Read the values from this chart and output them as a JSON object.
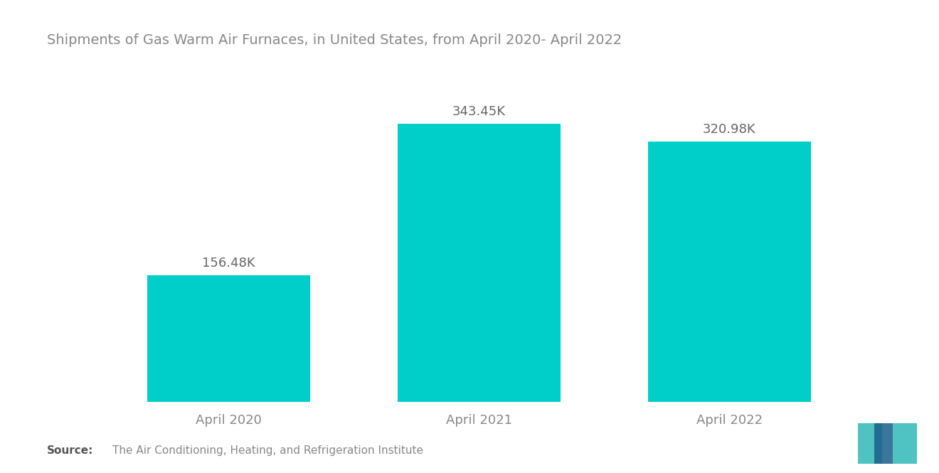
{
  "title": "Shipments of Gas Warm Air Furnaces, in United States, from April 2020- April 2022",
  "categories": [
    "April 2020",
    "April 2021",
    "April 2022"
  ],
  "values": [
    156.48,
    343.45,
    320.98
  ],
  "labels": [
    "156.48K",
    "343.45K",
    "320.98K"
  ],
  "bar_color": "#00CEC9",
  "title_color": "#888888",
  "label_color": "#666666",
  "tick_color": "#888888",
  "source_bold": "Source:",
  "source_text": "  The Air Conditioning, Heating, and Refrigeration Institute",
  "background_color": "#ffffff",
  "bar_width": 0.65,
  "ylim": [
    0,
    420
  ],
  "title_fontsize": 14,
  "label_fontsize": 13,
  "tick_fontsize": 13
}
